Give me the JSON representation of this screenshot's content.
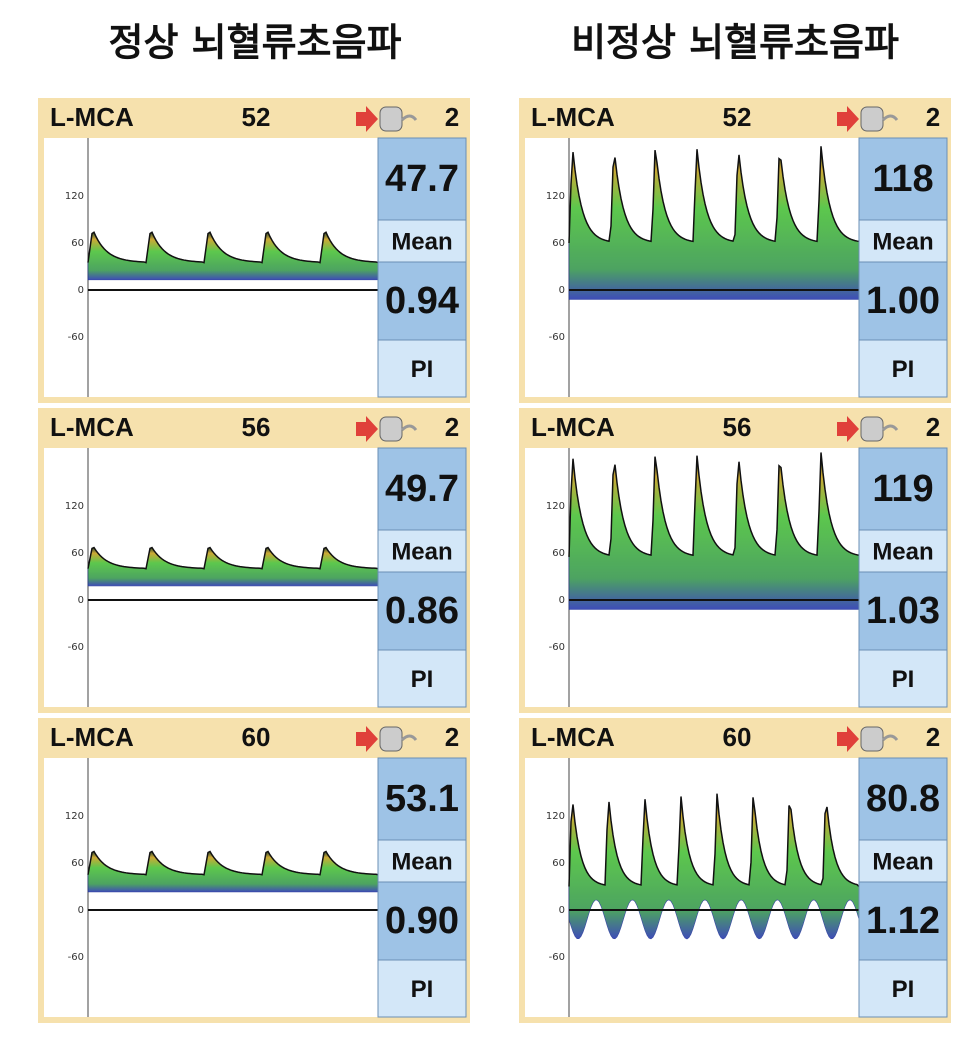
{
  "columns": [
    {
      "title": "정상 뇌혈류초음파",
      "panels": [
        {
          "vessel": "L-MCA",
          "depth": "52",
          "gate": "2",
          "mean": "47.7",
          "mean_label": "Mean",
          "pi": "0.94",
          "pi_label": "PI",
          "scale": [
            "120",
            "60",
            "0",
            "-60"
          ]
        },
        {
          "vessel": "L-MCA",
          "depth": "56",
          "gate": "2",
          "mean": "49.7",
          "mean_label": "Mean",
          "pi": "0.86",
          "pi_label": "PI",
          "scale": [
            "120",
            "60",
            "0",
            "-60"
          ]
        },
        {
          "vessel": "L-MCA",
          "depth": "60",
          "gate": "2",
          "mean": "53.1",
          "mean_label": "Mean",
          "pi": "0.90",
          "pi_label": "PI",
          "scale": [
            "120",
            "60",
            "0",
            "-60"
          ]
        }
      ]
    },
    {
      "title": "비정상 뇌혈류초음파",
      "panels": [
        {
          "vessel": "L-MCA",
          "depth": "52",
          "gate": "2",
          "mean": "118",
          "mean_label": "Mean",
          "pi": "1.00",
          "pi_label": "PI",
          "scale": [
            "120",
            "60",
            "0",
            "-60"
          ]
        },
        {
          "vessel": "L-MCA",
          "depth": "56",
          "gate": "2",
          "mean": "119",
          "mean_label": "Mean",
          "pi": "1.03",
          "pi_label": "PI",
          "scale": [
            "120",
            "60",
            "0",
            "-60"
          ]
        },
        {
          "vessel": "L-MCA",
          "depth": "60",
          "gate": "2",
          "mean": "80.8",
          "mean_label": "Mean",
          "pi": "1.12",
          "pi_label": "PI",
          "scale": [
            "120",
            "60",
            "0",
            "-60"
          ]
        }
      ]
    }
  ]
}
